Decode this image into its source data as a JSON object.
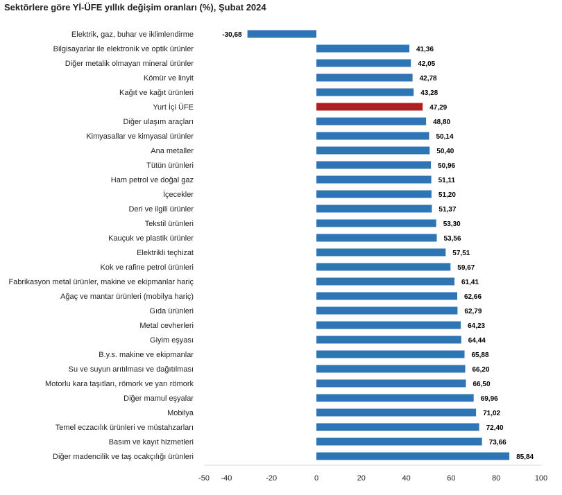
{
  "chart_data": {
    "type": "bar",
    "orientation": "horizontal",
    "title": "Sektörlere göre Yİ-ÜFE yıllık değişim oranları (%), Şubat 2024",
    "xlabel": "",
    "ylabel": "",
    "xlim": [
      -50,
      100
    ],
    "x_ticks": [
      "-50",
      "-40",
      "-20",
      "0",
      "20",
      "40",
      "60",
      "80",
      "100"
    ],
    "x_tick_values": [
      -50,
      -40,
      -20,
      0,
      20,
      40,
      60,
      80,
      100
    ],
    "grid": false,
    "legend": "none",
    "colors": {
      "default": "#2e75b6",
      "highlight": "#b01f24",
      "axis": "#d9d9d9"
    },
    "highlight_category": "Yurt İçi ÜFE",
    "categories": [
      "Elektrik, gaz, buhar ve iklimlendirme",
      "Bilgisayarlar ile elektronik ve optik ürünler",
      "Diğer metalik olmayan mineral ürünler",
      "Kömür ve linyit",
      "Kağıt ve kağıt ürünleri",
      "Yurt İçi ÜFE",
      "Diğer ulaşım araçları",
      "Kimyasallar ve kimyasal ürünler",
      "Ana metaller",
      "Tütün ürünleri",
      "Ham petrol ve doğal gaz",
      "İçecekler",
      "Deri ve ilgili ürünler",
      "Tekstil ürünleri",
      "Kauçuk ve plastik ürünler",
      "Elektrikli teçhizat",
      "Kok ve rafine petrol ürünleri",
      "Fabrikasyon metal ürünler, makine ve ekipmanlar hariç",
      "Ağaç ve mantar ürünleri (mobilya hariç)",
      "Gıda ürünleri",
      "Metal cevherleri",
      "Giyim eşyası",
      "B.y.s. makine ve ekipmanlar",
      "Su ve suyun arıtılması ve dağıtılması",
      "Motorlu kara taşıtları, römork ve yarı römork",
      "Diğer mamul eşyalar",
      "Mobilya",
      "Temel eczacılık ürünleri ve müstahzarları",
      "Basım ve kayıt hizmetleri",
      "Diğer madencilik ve taş ocakçılığı ürünleri"
    ],
    "values": [
      -30.68,
      41.36,
      42.05,
      42.78,
      43.28,
      47.29,
      48.8,
      50.14,
      50.4,
      50.96,
      51.11,
      51.2,
      51.37,
      53.3,
      53.56,
      57.51,
      59.67,
      61.41,
      62.66,
      62.79,
      64.23,
      64.44,
      65.88,
      66.2,
      66.5,
      69.96,
      71.02,
      72.4,
      73.66,
      85.84
    ],
    "value_labels": [
      "-30,68",
      "41,36",
      "42,05",
      "42,78",
      "43,28",
      "47,29",
      "48,80",
      "50,14",
      "50,40",
      "50,96",
      "51,11",
      "51,20",
      "51,37",
      "53,30",
      "53,56",
      "57,51",
      "59,67",
      "61,41",
      "62,66",
      "62,79",
      "64,23",
      "64,44",
      "65,88",
      "66,20",
      "66,50",
      "69,96",
      "71,02",
      "72,40",
      "73,66",
      "85,84"
    ]
  }
}
